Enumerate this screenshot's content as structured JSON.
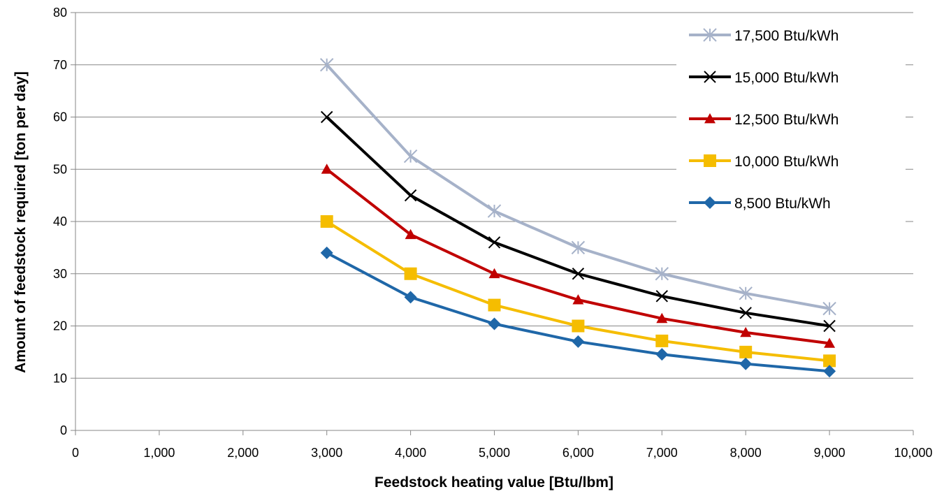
{
  "chart_data": {
    "type": "line",
    "title": "",
    "xlabel": "Feedstock heating value [Btu/lbm]",
    "ylabel": "Amount of feedstock required [ton per day]",
    "xlim": [
      0,
      10000
    ],
    "ylim": [
      0,
      80
    ],
    "x_ticks": [
      0,
      1000,
      2000,
      3000,
      4000,
      5000,
      6000,
      7000,
      8000,
      9000,
      10000
    ],
    "x_tick_labels": [
      "0",
      "1,000",
      "2,000",
      "3,000",
      "4,000",
      "5,000",
      "6,000",
      "7,000",
      "8,000",
      "9,000",
      "10,000"
    ],
    "y_ticks": [
      0,
      10,
      20,
      30,
      40,
      50,
      60,
      70,
      80
    ],
    "y_tick_labels": [
      "0",
      "10",
      "20",
      "30",
      "40",
      "50",
      "60",
      "70",
      "80"
    ],
    "grid": "horizontal",
    "legend_position": "top-right",
    "x": [
      3000,
      4000,
      5000,
      6000,
      7000,
      8000,
      9000
    ],
    "series": [
      {
        "name": "17,500  Btu/kWh",
        "color": "#a6b2c9",
        "marker": "asterisk",
        "values": [
          70,
          52.5,
          42,
          35,
          30,
          26.25,
          23.33
        ]
      },
      {
        "name": "15,000  Btu/kWh",
        "color": "#000000",
        "marker": "x",
        "values": [
          60,
          45,
          36,
          30,
          25.71,
          22.5,
          20
        ]
      },
      {
        "name": "12,500 Btu/kWh",
        "color": "#c00000",
        "marker": "triangle",
        "values": [
          50,
          37.5,
          30,
          25,
          21.43,
          18.75,
          16.67
        ]
      },
      {
        "name": "10,000 Btu/kWh",
        "color": "#f5bd00",
        "marker": "square",
        "values": [
          40,
          30,
          24,
          20,
          17.14,
          15,
          13.33
        ]
      },
      {
        "name": "8,500 Btu/kWh",
        "color": "#1f67a8",
        "marker": "diamond",
        "values": [
          34,
          25.5,
          20.4,
          17,
          14.57,
          12.75,
          11.33
        ]
      }
    ]
  }
}
